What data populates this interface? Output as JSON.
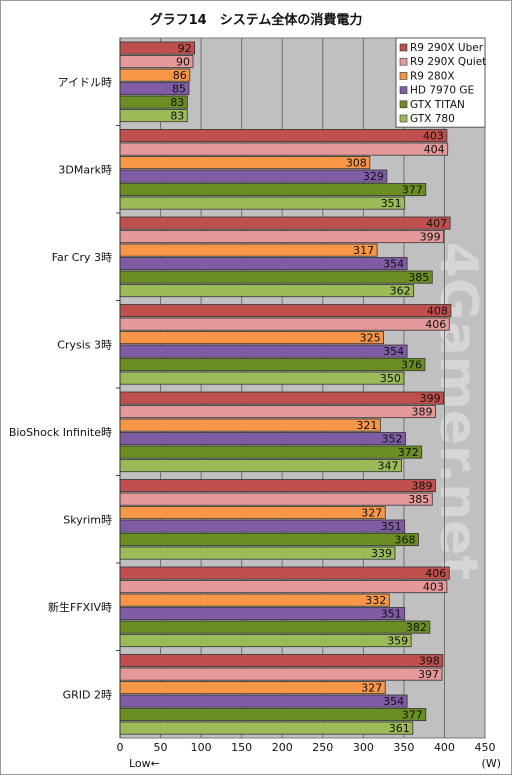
{
  "chart_data": {
    "type": "bar",
    "orientation": "horizontal",
    "title": "グラフ14　システム全体の消費電力",
    "categories": [
      "アイドル時",
      "3DMark時",
      "Far Cry 3時",
      "Crysis 3時",
      "BioShock Infinite時",
      "Skyrim時",
      "新生FFXIV時",
      "GRID 2時"
    ],
    "series": [
      {
        "name": "R9 290X Uber",
        "color": "#c0504d",
        "values": [
          92,
          403,
          407,
          408,
          399,
          389,
          406,
          398
        ]
      },
      {
        "name": "R9 290X Quiet",
        "color": "#e6999a",
        "values": [
          90,
          404,
          399,
          406,
          389,
          385,
          403,
          397
        ]
      },
      {
        "name": "R9 280X",
        "color": "#f79646",
        "values": [
          86,
          308,
          317,
          325,
          321,
          327,
          332,
          327
        ]
      },
      {
        "name": "HD 7970 GE",
        "color": "#7f5ca3",
        "values": [
          85,
          329,
          354,
          354,
          352,
          351,
          351,
          354
        ]
      },
      {
        "name": "GTX TITAN",
        "color": "#6b8e23",
        "values": [
          83,
          377,
          385,
          376,
          372,
          368,
          382,
          377
        ]
      },
      {
        "name": "GTX 780",
        "color": "#9bbb59",
        "values": [
          83,
          351,
          362,
          350,
          347,
          339,
          359,
          361
        ]
      }
    ],
    "xlim": [
      0,
      450
    ],
    "x_ticks": [
      0,
      50,
      100,
      150,
      200,
      250,
      300,
      350,
      400,
      450
    ],
    "xlabel_left": "Low←",
    "xunit": "(W)",
    "grid": true,
    "legend_position": "top-right",
    "watermark": "4Gamer.net"
  }
}
